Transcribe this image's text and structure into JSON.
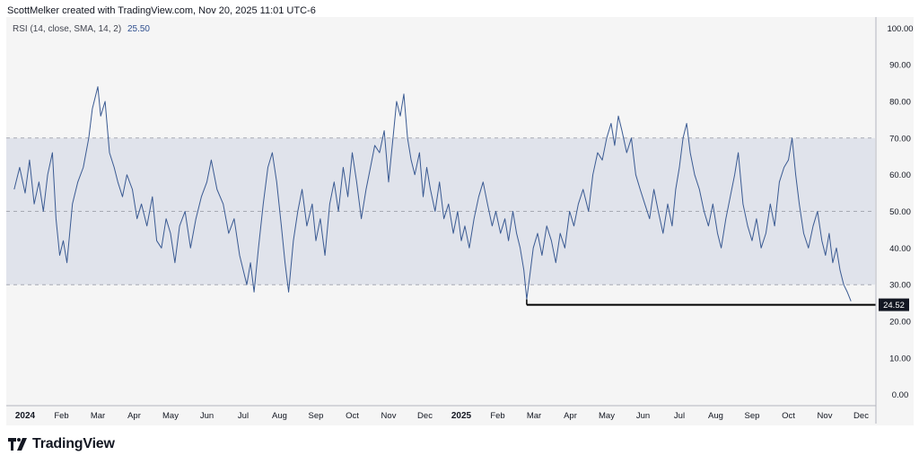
{
  "header": {
    "attribution": "ScottMelker created with TradingView.com, Nov 20, 2025 11:01 UTC-6"
  },
  "legend": {
    "label": "RSI (14, close, SMA, 14, 2)",
    "value": "25.50"
  },
  "brand": {
    "name": "TradingView"
  },
  "colors": {
    "line": "#3a5a92",
    "band": "#e0e3eb",
    "background": "#f5f5f5",
    "support": "#000000"
  },
  "chart_data": {
    "type": "line",
    "title": "RSI (14, close, SMA, 14, 2)",
    "current_value": 25.5,
    "ylim": [
      -3,
      103
    ],
    "y_ticks": [
      "100.00",
      "90.00",
      "80.00",
      "70.00",
      "60.00",
      "50.00",
      "40.00",
      "30.00",
      "20.00",
      "10.00",
      "0.00"
    ],
    "y_tick_values": [
      100,
      90,
      80,
      70,
      60,
      50,
      40,
      30,
      20,
      10,
      0
    ],
    "x_ticks": [
      {
        "label": "2024",
        "bold": true,
        "t": 0.0
      },
      {
        "label": "Feb",
        "t": 1.0
      },
      {
        "label": "Mar",
        "t": 2.0
      },
      {
        "label": "Apr",
        "t": 3.0
      },
      {
        "label": "May",
        "t": 4.0
      },
      {
        "label": "Jun",
        "t": 5.0
      },
      {
        "label": "Jul",
        "t": 6.0
      },
      {
        "label": "Aug",
        "t": 7.0
      },
      {
        "label": "Sep",
        "t": 8.0
      },
      {
        "label": "Oct",
        "t": 9.0
      },
      {
        "label": "Nov",
        "t": 10.0
      },
      {
        "label": "Dec",
        "t": 11.0
      },
      {
        "label": "2025",
        "bold": true,
        "t": 12.0
      },
      {
        "label": "Feb",
        "t": 13.0
      },
      {
        "label": "Mar",
        "t": 14.0
      },
      {
        "label": "Apr",
        "t": 15.0
      },
      {
        "label": "May",
        "t": 16.0
      },
      {
        "label": "Jun",
        "t": 17.0
      },
      {
        "label": "Jul",
        "t": 18.0
      },
      {
        "label": "Aug",
        "t": 19.0
      },
      {
        "label": "Sep",
        "t": 20.0
      },
      {
        "label": "Oct",
        "t": 21.0
      },
      {
        "label": "Nov",
        "t": 22.0
      },
      {
        "label": "Dec",
        "t": 23.0
      }
    ],
    "bands": {
      "upper": 70,
      "middle": 50,
      "lower": 30
    },
    "support_line": {
      "value": 24.52,
      "label": "24.52",
      "from_t": 13.8
    },
    "series": [
      {
        "name": "RSI",
        "points": [
          [
            -0.3,
            56
          ],
          [
            -0.15,
            62
          ],
          [
            0.0,
            55
          ],
          [
            0.12,
            64
          ],
          [
            0.25,
            52
          ],
          [
            0.38,
            58
          ],
          [
            0.5,
            50
          ],
          [
            0.62,
            60
          ],
          [
            0.75,
            66
          ],
          [
            0.85,
            48
          ],
          [
            0.95,
            38
          ],
          [
            1.05,
            42
          ],
          [
            1.15,
            36
          ],
          [
            1.3,
            52
          ],
          [
            1.45,
            58
          ],
          [
            1.6,
            62
          ],
          [
            1.75,
            70
          ],
          [
            1.85,
            78
          ],
          [
            2.0,
            84
          ],
          [
            2.08,
            76
          ],
          [
            2.2,
            80
          ],
          [
            2.32,
            66
          ],
          [
            2.45,
            62
          ],
          [
            2.55,
            58
          ],
          [
            2.68,
            54
          ],
          [
            2.8,
            60
          ],
          [
            2.95,
            56
          ],
          [
            3.08,
            48
          ],
          [
            3.2,
            52
          ],
          [
            3.35,
            46
          ],
          [
            3.5,
            54
          ],
          [
            3.62,
            42
          ],
          [
            3.75,
            40
          ],
          [
            3.88,
            48
          ],
          [
            4.0,
            44
          ],
          [
            4.12,
            36
          ],
          [
            4.25,
            46
          ],
          [
            4.4,
            50
          ],
          [
            4.55,
            40
          ],
          [
            4.7,
            48
          ],
          [
            4.85,
            54
          ],
          [
            5.0,
            58
          ],
          [
            5.12,
            64
          ],
          [
            5.28,
            56
          ],
          [
            5.45,
            52
          ],
          [
            5.6,
            44
          ],
          [
            5.75,
            48
          ],
          [
            5.9,
            38
          ],
          [
            6.0,
            34
          ],
          [
            6.1,
            30
          ],
          [
            6.2,
            36
          ],
          [
            6.3,
            28
          ],
          [
            6.42,
            40
          ],
          [
            6.55,
            52
          ],
          [
            6.68,
            62
          ],
          [
            6.8,
            66
          ],
          [
            6.92,
            58
          ],
          [
            7.05,
            46
          ],
          [
            7.15,
            36
          ],
          [
            7.25,
            28
          ],
          [
            7.38,
            42
          ],
          [
            7.5,
            50
          ],
          [
            7.62,
            56
          ],
          [
            7.75,
            46
          ],
          [
            7.9,
            52
          ],
          [
            8.0,
            42
          ],
          [
            8.12,
            48
          ],
          [
            8.25,
            38
          ],
          [
            8.38,
            52
          ],
          [
            8.5,
            58
          ],
          [
            8.62,
            50
          ],
          [
            8.75,
            62
          ],
          [
            8.88,
            54
          ],
          [
            9.0,
            66
          ],
          [
            9.12,
            58
          ],
          [
            9.25,
            48
          ],
          [
            9.38,
            56
          ],
          [
            9.5,
            62
          ],
          [
            9.62,
            68
          ],
          [
            9.75,
            66
          ],
          [
            9.88,
            72
          ],
          [
            10.0,
            58
          ],
          [
            10.12,
            70
          ],
          [
            10.22,
            80
          ],
          [
            10.32,
            76
          ],
          [
            10.42,
            82
          ],
          [
            10.52,
            70
          ],
          [
            10.62,
            64
          ],
          [
            10.72,
            60
          ],
          [
            10.85,
            66
          ],
          [
            10.95,
            54
          ],
          [
            11.05,
            62
          ],
          [
            11.15,
            56
          ],
          [
            11.28,
            50
          ],
          [
            11.4,
            58
          ],
          [
            11.52,
            48
          ],
          [
            11.65,
            52
          ],
          [
            11.78,
            44
          ],
          [
            11.9,
            50
          ],
          [
            12.0,
            42
          ],
          [
            12.1,
            46
          ],
          [
            12.22,
            40
          ],
          [
            12.35,
            48
          ],
          [
            12.48,
            54
          ],
          [
            12.6,
            58
          ],
          [
            12.72,
            52
          ],
          [
            12.85,
            46
          ],
          [
            12.95,
            50
          ],
          [
            13.08,
            44
          ],
          [
            13.2,
            48
          ],
          [
            13.3,
            42
          ],
          [
            13.42,
            50
          ],
          [
            13.52,
            44
          ],
          [
            13.62,
            40
          ],
          [
            13.72,
            34
          ],
          [
            13.8,
            26
          ],
          [
            13.88,
            32
          ],
          [
            13.98,
            40
          ],
          [
            14.1,
            44
          ],
          [
            14.22,
            38
          ],
          [
            14.35,
            46
          ],
          [
            14.48,
            42
          ],
          [
            14.6,
            36
          ],
          [
            14.72,
            44
          ],
          [
            14.85,
            40
          ],
          [
            14.98,
            50
          ],
          [
            15.1,
            46
          ],
          [
            15.22,
            52
          ],
          [
            15.35,
            56
          ],
          [
            15.5,
            50
          ],
          [
            15.62,
            60
          ],
          [
            15.75,
            66
          ],
          [
            15.88,
            64
          ],
          [
            16.0,
            70
          ],
          [
            16.12,
            74
          ],
          [
            16.22,
            68
          ],
          [
            16.32,
            76
          ],
          [
            16.42,
            72
          ],
          [
            16.55,
            66
          ],
          [
            16.68,
            70
          ],
          [
            16.8,
            60
          ],
          [
            16.92,
            56
          ],
          [
            17.05,
            52
          ],
          [
            17.18,
            48
          ],
          [
            17.3,
            56
          ],
          [
            17.42,
            50
          ],
          [
            17.55,
            44
          ],
          [
            17.68,
            52
          ],
          [
            17.8,
            46
          ],
          [
            17.9,
            56
          ],
          [
            18.0,
            62
          ],
          [
            18.1,
            70
          ],
          [
            18.2,
            74
          ],
          [
            18.3,
            66
          ],
          [
            18.42,
            60
          ],
          [
            18.55,
            56
          ],
          [
            18.68,
            50
          ],
          [
            18.8,
            46
          ],
          [
            18.92,
            52
          ],
          [
            19.05,
            44
          ],
          [
            19.15,
            40
          ],
          [
            19.28,
            48
          ],
          [
            19.4,
            54
          ],
          [
            19.52,
            60
          ],
          [
            19.62,
            66
          ],
          [
            19.75,
            52
          ],
          [
            19.88,
            46
          ],
          [
            20.0,
            42
          ],
          [
            20.12,
            48
          ],
          [
            20.25,
            40
          ],
          [
            20.38,
            44
          ],
          [
            20.5,
            52
          ],
          [
            20.62,
            46
          ],
          [
            20.75,
            58
          ],
          [
            20.88,
            62
          ],
          [
            21.0,
            64
          ],
          [
            21.1,
            70
          ],
          [
            21.2,
            60
          ],
          [
            21.3,
            52
          ],
          [
            21.42,
            44
          ],
          [
            21.55,
            40
          ],
          [
            21.68,
            46
          ],
          [
            21.8,
            50
          ],
          [
            21.92,
            42
          ],
          [
            22.02,
            38
          ],
          [
            22.12,
            44
          ],
          [
            22.22,
            36
          ],
          [
            22.32,
            40
          ],
          [
            22.42,
            34
          ],
          [
            22.52,
            30
          ],
          [
            22.62,
            28
          ],
          [
            22.72,
            25.5
          ]
        ]
      }
    ]
  }
}
